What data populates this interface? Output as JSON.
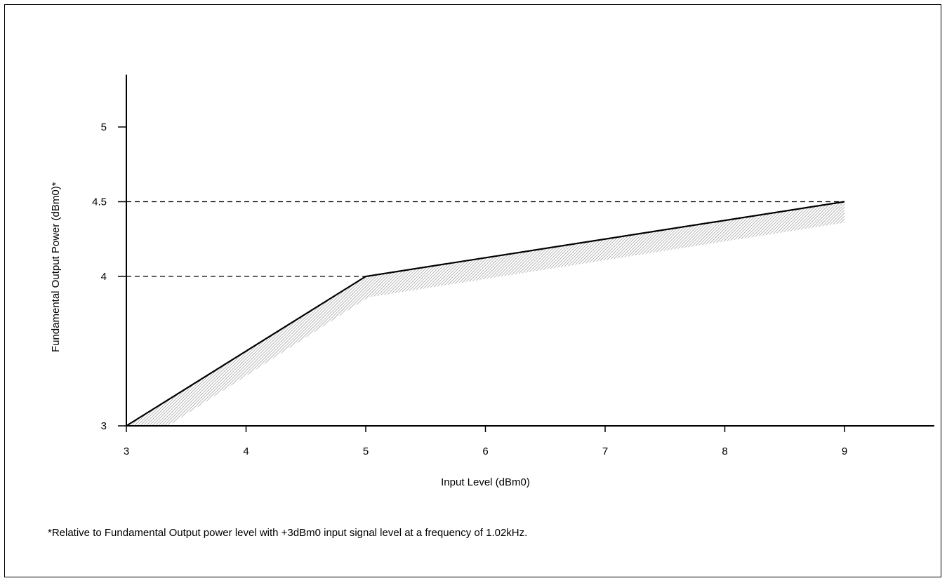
{
  "chart_data": {
    "type": "line",
    "xlabel": "Input Level (dBm0)",
    "ylabel": "Fundamental Output Power (dBm0)*",
    "x_ticks": [
      3,
      4,
      5,
      6,
      7,
      8,
      9
    ],
    "y_ticks": [
      3,
      4,
      4.5,
      5
    ],
    "xlim": [
      3,
      9.75
    ],
    "ylim": [
      3,
      5.35
    ],
    "grid": false,
    "series": [
      {
        "points": [
          [
            3,
            3
          ],
          [
            5,
            4
          ],
          [
            9,
            4.5
          ]
        ]
      }
    ],
    "tolerance_band": {
      "upper": [
        [
          3,
          3
        ],
        [
          5,
          4
        ],
        [
          9,
          4.5
        ]
      ],
      "lower": [
        [
          3.35,
          3
        ],
        [
          5.02,
          3.86
        ],
        [
          9,
          4.36
        ]
      ]
    },
    "reference_lines": [
      {
        "y": 4.5,
        "x_to": 9,
        "style": "dashed"
      },
      {
        "y": 4,
        "x_to": 5,
        "style": "dashed"
      }
    ],
    "footnote": "*Relative to Fundamental Output power level with +3dBm0 input signal level at a frequency of 1.02kHz."
  },
  "colors": {
    "line": "#000000",
    "band": "#9a9a9a"
  }
}
